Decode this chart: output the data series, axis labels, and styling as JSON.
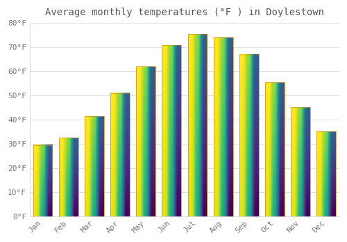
{
  "title": "Average monthly temperatures (°F ) in Doylestown",
  "months": [
    "Jan",
    "Feb",
    "Mar",
    "Apr",
    "May",
    "Jun",
    "Jul",
    "Aug",
    "Sep",
    "Oct",
    "Nov",
    "Dec"
  ],
  "values": [
    29.5,
    32.5,
    41.5,
    51.0,
    62.0,
    71.0,
    75.5,
    74.0,
    67.0,
    55.5,
    45.0,
    35.0
  ],
  "bar_color_bottom": "#F5A623",
  "bar_color_top": "#FFD966",
  "background_color": "#FFFFFF",
  "grid_color": "#DDDDDD",
  "text_color": "#777777",
  "ylim": [
    0,
    80
  ],
  "yticks": [
    0,
    10,
    20,
    30,
    40,
    50,
    60,
    70,
    80
  ],
  "ytick_labels": [
    "0°F",
    "10°F",
    "20°F",
    "30°F",
    "40°F",
    "50°F",
    "60°F",
    "70°F",
    "80°F"
  ],
  "title_fontsize": 10,
  "tick_fontsize": 8,
  "font_family": "monospace"
}
